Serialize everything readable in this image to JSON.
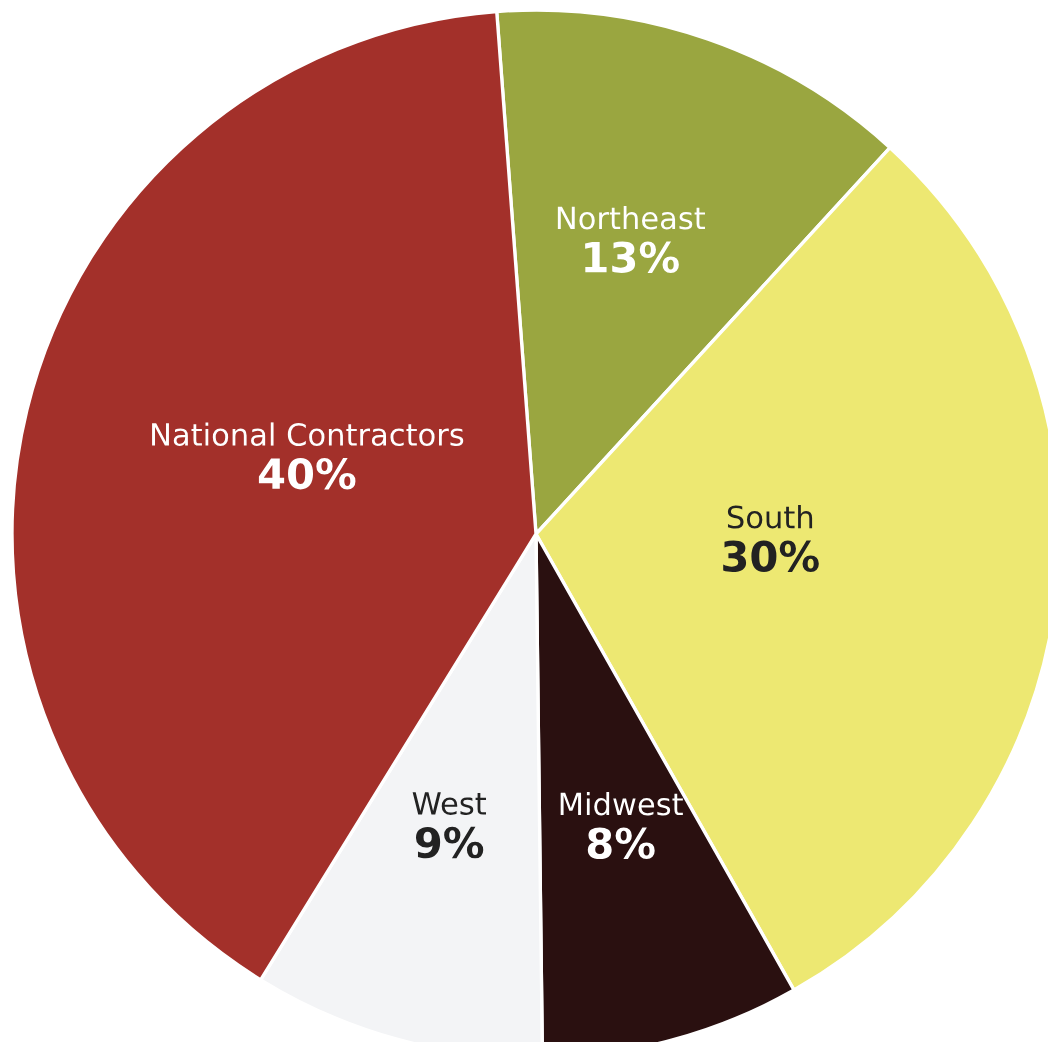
{
  "chart_data": {
    "type": "pie",
    "categories": [
      "Northeast",
      "South",
      "Midwest",
      "West",
      "National Contractors"
    ],
    "values": [
      13,
      30,
      8,
      9,
      40
    ],
    "colors": [
      "#9aa640",
      "#ede872",
      "#2a1010",
      "#f3f4f6",
      "#a3302a"
    ],
    "value_labels": [
      "13%",
      "30%",
      "8%",
      "9%",
      "40%"
    ]
  }
}
